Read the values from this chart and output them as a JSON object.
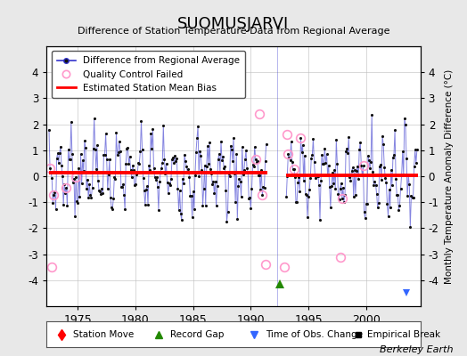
{
  "title": "SUOMUSJARVI",
  "subtitle": "Difference of Station Temperature Data from Regional Average",
  "ylabel": "Monthly Temperature Anomaly Difference (°C)",
  "ylim": [
    -5,
    5
  ],
  "yticks": [
    -4,
    -3,
    -2,
    -1,
    0,
    1,
    2,
    3,
    4
  ],
  "xticks": [
    1975,
    1980,
    1985,
    1990,
    1995,
    2000
  ],
  "xlim": [
    1972.3,
    2004.7
  ],
  "seg1_start": 1972.5,
  "seg1_end": 1991.42,
  "seg2_start": 1993.08,
  "seg2_end": 2004.5,
  "bias1_y": 0.13,
  "bias2_y": 0.05,
  "record_gap_x": 1992.5,
  "record_gap_y": -4.15,
  "time_obs_x": 2003.5,
  "time_obs_y": -4.5,
  "bg_color": "#e8e8e8",
  "plot_bg": "#ffffff",
  "line_color": "#3333cc",
  "line_alpha": 0.6,
  "bias_color": "#ff0000",
  "qc_color": "#ff99cc",
  "dot_color": "#111111",
  "berkeley_text": "Berkeley Earth"
}
